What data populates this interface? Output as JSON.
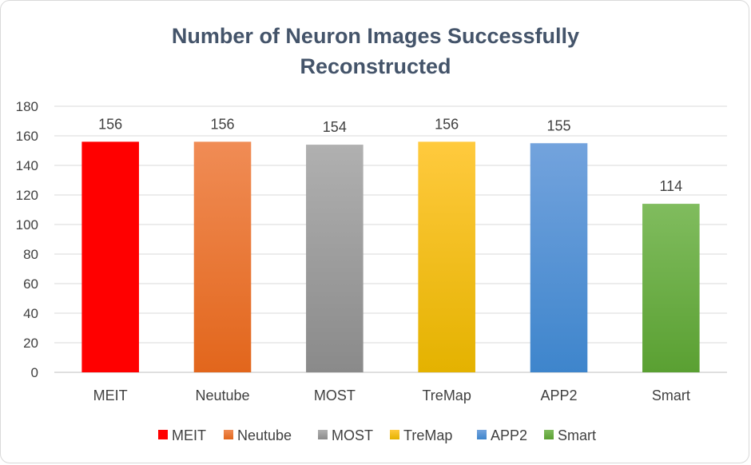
{
  "chart_data": {
    "type": "bar",
    "title_lines": [
      "Number of Neuron Images Successfully",
      "Reconstructed"
    ],
    "categories": [
      "MEIT",
      "Neutube",
      "MOST",
      "TreMap",
      "APP2",
      "Smart"
    ],
    "values": [
      156,
      156,
      154,
      156,
      155,
      114
    ],
    "value_labels": [
      "156",
      "156",
      "154",
      "156",
      "155",
      "114"
    ],
    "yticks": [
      "0",
      "20",
      "40",
      "60",
      "80",
      "100",
      "120",
      "140",
      "160",
      "180"
    ],
    "ylim": [
      0,
      180
    ],
    "grid": true,
    "legend_position": "bottom",
    "colors": [
      {
        "top": "#ff0000",
        "bottom": "#ff0000"
      },
      {
        "top": "#f08c55",
        "bottom": "#e2661c"
      },
      {
        "top": "#b0b0b0",
        "bottom": "#8a8a8a"
      },
      {
        "top": "#ffca3e",
        "bottom": "#e4b200"
      },
      {
        "top": "#73a3dd",
        "bottom": "#3e85cc"
      },
      {
        "top": "#80bc5e",
        "bottom": "#5aa032"
      }
    ],
    "legend": [
      "MEIT",
      "Neutube",
      "MOST",
      "TreMap",
      "APP2",
      "Smart"
    ]
  }
}
